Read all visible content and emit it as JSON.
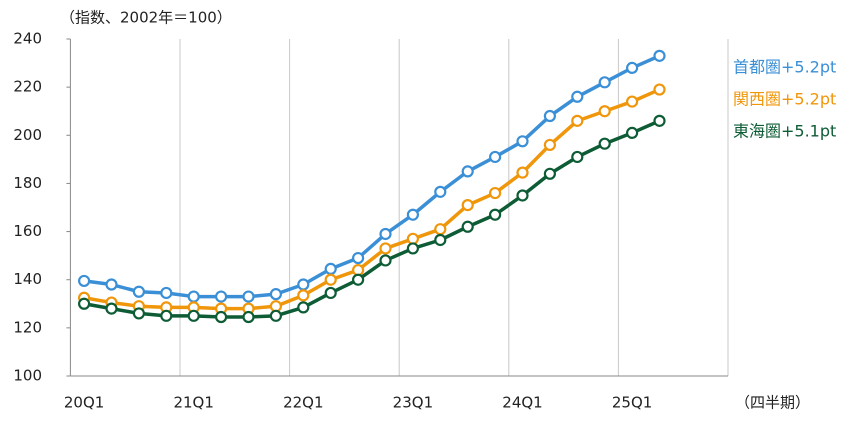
{
  "chart_data": {
    "type": "line",
    "subtitle": "（指数、2002年＝100）",
    "x_label": "（四半期）",
    "categories": [
      "20Q1",
      null,
      null,
      null,
      "21Q1",
      null,
      null,
      null,
      "22Q1",
      null,
      null,
      null,
      "23Q1",
      null,
      null,
      null,
      "24Q1",
      null,
      null,
      null,
      "25Q1",
      null,
      null,
      null
    ],
    "series": [
      {
        "name": "首都圏+5.2pt",
        "color": "#3a8fd6",
        "values": [
          139.5,
          138,
          135,
          134.5,
          133,
          133,
          133,
          134,
          138,
          144.5,
          149,
          159,
          167,
          176.5,
          185,
          191,
          197.5,
          208,
          216,
          222,
          228,
          233,
          null,
          null
        ]
      },
      {
        "name": "関西圏+5.2pt",
        "color": "#f0960a",
        "values": [
          132.5,
          130.5,
          129,
          128.5,
          128.5,
          128,
          128,
          129,
          133.5,
          140,
          144,
          153,
          157,
          161,
          171,
          176,
          184.5,
          196,
          206,
          210,
          214,
          219,
          null,
          null
        ]
      },
      {
        "name": "東海圏+5.1pt",
        "color": "#0d5c35",
        "values": [
          130,
          128,
          126,
          125,
          125,
          124.5,
          124.5,
          125,
          128.5,
          134.5,
          140,
          148,
          153,
          156.5,
          162,
          167,
          175,
          184,
          191,
          196.5,
          201,
          206,
          null,
          null
        ]
      }
    ],
    "ylim": [
      100,
      240
    ],
    "yticks": [
      100,
      120,
      140,
      160,
      180,
      200,
      220,
      240
    ],
    "grid": true
  }
}
